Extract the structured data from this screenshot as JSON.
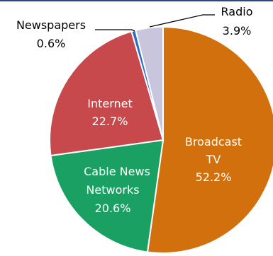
{
  "chart_data": {
    "type": "pie",
    "title": "",
    "slices": [
      {
        "label": "Broadcast TV",
        "value": 52.2,
        "value_label": "52.2%",
        "color": "#d2700e"
      },
      {
        "label": "Cable News Networks",
        "value": 20.6,
        "value_label": "20.6%",
        "color": "#19a062"
      },
      {
        "label": "Internet",
        "value": 22.7,
        "value_label": "22.7%",
        "color": "#c8494b"
      },
      {
        "label": "Newspapers",
        "value": 0.6,
        "value_label": "0.6%",
        "color": "#2f6fc2"
      },
      {
        "label": "Radio",
        "value": 3.9,
        "value_label": "3.9%",
        "color": "#c8c5dc"
      }
    ],
    "start_angle": "12 o'clock",
    "direction": "clockwise",
    "legend": "none"
  }
}
